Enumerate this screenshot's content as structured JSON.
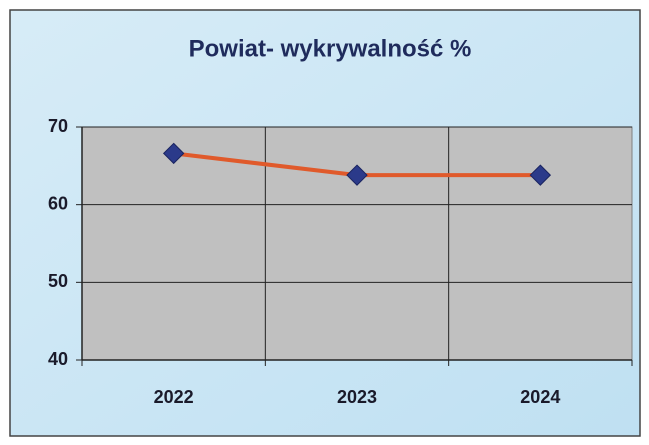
{
  "chart_data": {
    "type": "line",
    "title": "Powiat- wykrywalność %",
    "categories": [
      "2022",
      "2023",
      "2024"
    ],
    "values": [
      66.6,
      63.8,
      63.8
    ],
    "color": "#e05a2b",
    "marker_color": "#2b3a8a",
    "ylim": [
      40,
      70
    ],
    "yticks": [
      40,
      50,
      60,
      70
    ],
    "grid": true
  }
}
